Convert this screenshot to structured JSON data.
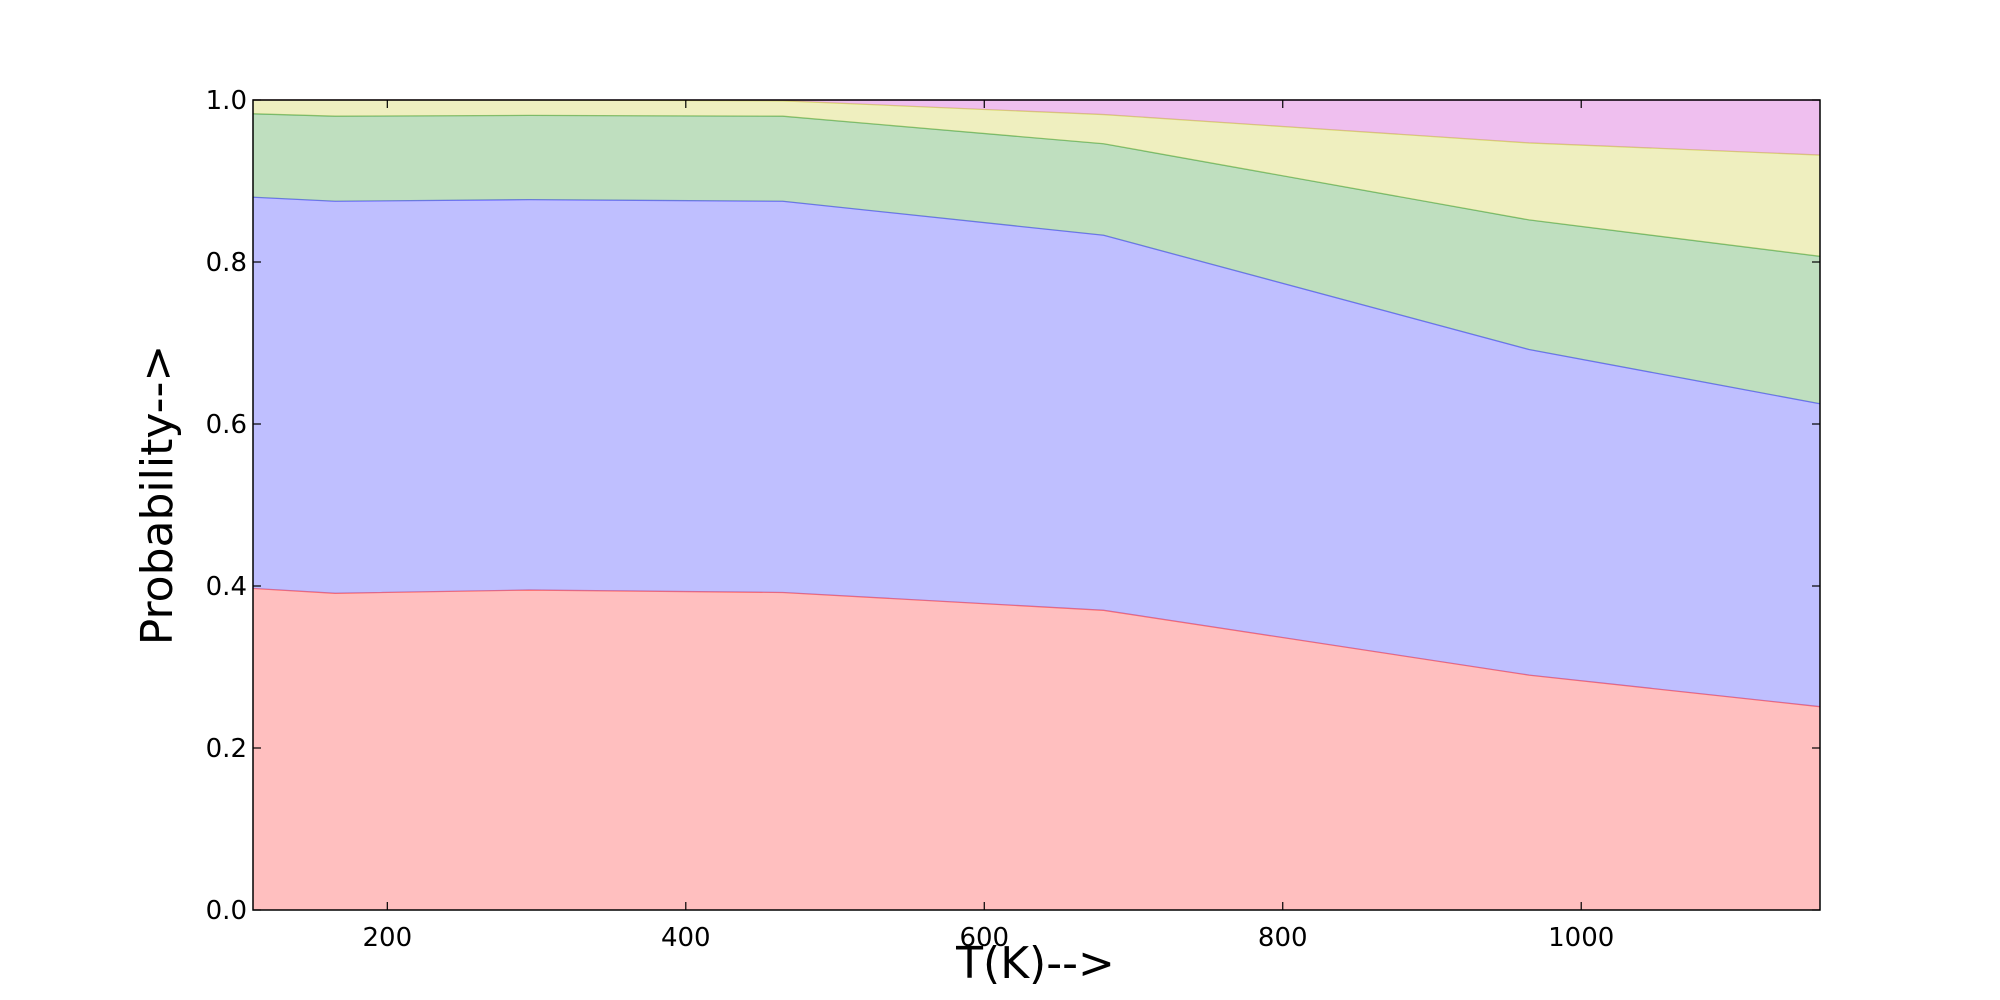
{
  "chart_data": {
    "type": "area",
    "stacked": true,
    "xlabel": "T(K)-->",
    "ylabel": "Probability-->",
    "xlim": [
      110,
      1160
    ],
    "ylim": [
      0.0,
      1.0
    ],
    "x_ticks": [
      200,
      400,
      600,
      800,
      1000
    ],
    "x_tick_labels": [
      "200",
      "400",
      "600",
      "800",
      "1000"
    ],
    "y_ticks": [
      0.0,
      0.2,
      0.4,
      0.6,
      0.8,
      1.0
    ],
    "y_tick_labels": [
      "0.0",
      "0.2",
      "0.4",
      "0.6",
      "0.8",
      "1.0"
    ],
    "grid": false,
    "x": [
      110,
      165,
      295,
      465,
      680,
      965,
      1160
    ],
    "series": [
      {
        "color": "#ff0000",
        "values": [
          0.397,
          0.391,
          0.395,
          0.392,
          0.37,
          0.29,
          0.251
        ]
      },
      {
        "color": "#0000ff",
        "values": [
          0.483,
          0.484,
          0.482,
          0.483,
          0.463,
          0.402,
          0.374
        ]
      },
      {
        "color": "#008000",
        "values": [
          0.103,
          0.105,
          0.104,
          0.105,
          0.113,
          0.16,
          0.182
        ]
      },
      {
        "color": "#bfbf00",
        "values": [
          0.017,
          0.02,
          0.019,
          0.019,
          0.036,
          0.095,
          0.125
        ]
      },
      {
        "color": "#bf00bf",
        "values": [
          0.0,
          0.0,
          0.0,
          0.001,
          0.018,
          0.053,
          0.068
        ]
      }
    ]
  }
}
